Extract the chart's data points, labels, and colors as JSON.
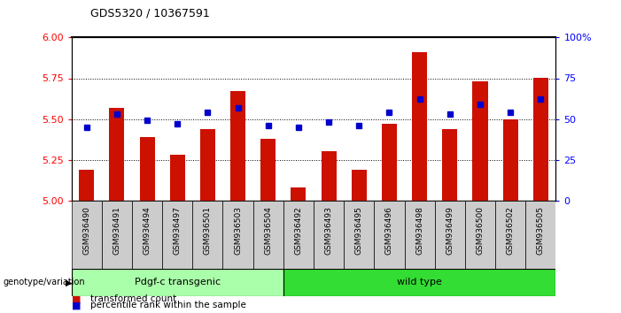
{
  "title": "GDS5320 / 10367591",
  "samples": [
    "GSM936490",
    "GSM936491",
    "GSM936494",
    "GSM936497",
    "GSM936501",
    "GSM936503",
    "GSM936504",
    "GSM936492",
    "GSM936493",
    "GSM936495",
    "GSM936496",
    "GSM936498",
    "GSM936499",
    "GSM936500",
    "GSM936502",
    "GSM936505"
  ],
  "red_values": [
    5.19,
    5.57,
    5.39,
    5.28,
    5.44,
    5.67,
    5.38,
    5.08,
    5.3,
    5.19,
    5.47,
    5.91,
    5.44,
    5.73,
    5.5,
    5.75
  ],
  "blue_values": [
    45,
    53,
    49,
    47,
    54,
    57,
    46,
    45,
    48,
    46,
    54,
    62,
    53,
    59,
    54,
    62
  ],
  "group1_label": "Pdgf-c transgenic",
  "group2_label": "wild type",
  "group1_count": 7,
  "group2_count": 9,
  "ylim_left": [
    5.0,
    6.0
  ],
  "ylim_right": [
    0,
    100
  ],
  "yticks_left": [
    5.0,
    5.25,
    5.5,
    5.75,
    6.0
  ],
  "yticks_right": [
    0,
    25,
    50,
    75,
    100
  ],
  "ytick_labels_right": [
    "0",
    "25",
    "50",
    "75",
    "100%"
  ],
  "bar_color": "#cc1100",
  "dot_color": "#0000cc",
  "group1_bg": "#aaffaa",
  "group2_bg": "#33dd33",
  "bar_bg": "#cccccc",
  "legend_items": [
    "transformed count",
    "percentile rank within the sample"
  ]
}
